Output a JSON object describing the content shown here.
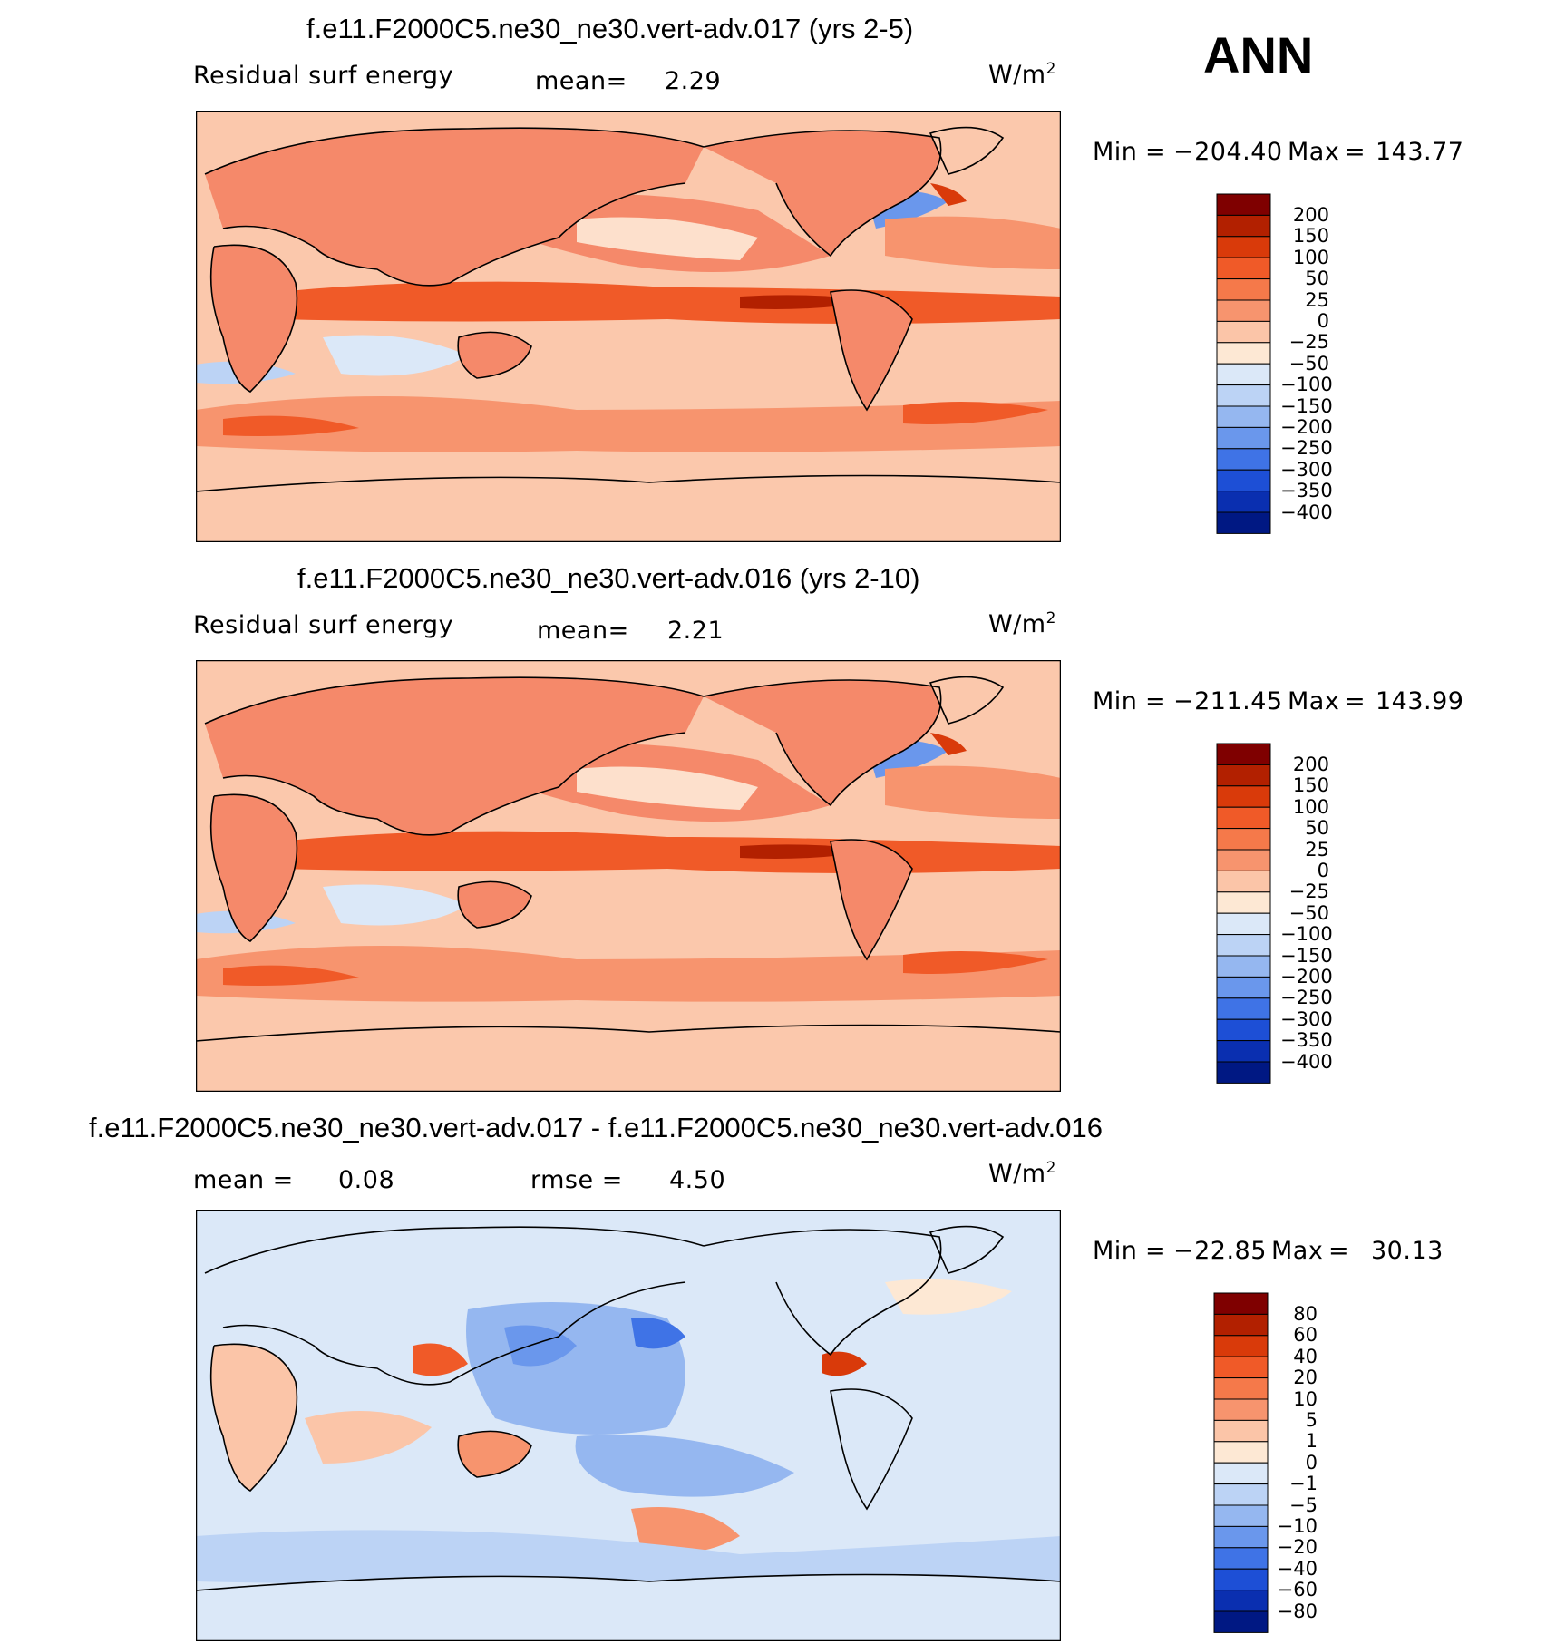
{
  "season": "ANN",
  "units_base": "W/m",
  "units_exp": "2",
  "panels": [
    {
      "title": "f.e11.F2000C5.ne30_ne30.vert-adv.017 (yrs 2-5)",
      "left_label": "Residual surf energy",
      "stat1_label": "mean=",
      "stat1_value": "2.29",
      "min_label": "Min",
      "min_value": "−204.40",
      "max_label": "Max",
      "max_value": "143.77",
      "levels": [
        "200",
        "150",
        "100",
        "50",
        "25",
        "0",
        "−25",
        "−50",
        "−100",
        "−150",
        "−200",
        "−250",
        "−300",
        "−350",
        "−400"
      ]
    },
    {
      "title": "f.e11.F2000C5.ne30_ne30.vert-adv.016 (yrs 2-10)",
      "left_label": "Residual surf energy",
      "stat1_label": "mean=",
      "stat1_value": "2.21",
      "min_label": "Min",
      "min_value": "−211.45",
      "max_label": "Max",
      "max_value": "143.99",
      "levels": [
        "200",
        "150",
        "100",
        "50",
        "25",
        "0",
        "−25",
        "−50",
        "−100",
        "−150",
        "−200",
        "−250",
        "−300",
        "−350",
        "−400"
      ]
    },
    {
      "title": "f.e11.F2000C5.ne30_ne30.vert-adv.017 - f.e11.F2000C5.ne30_ne30.vert-adv.016",
      "stat1_label": "mean =",
      "stat1_value": "0.08",
      "stat2_label": "rmse =",
      "stat2_value": "4.50",
      "min_label": "Min",
      "min_value": "−22.85",
      "max_label": "Max",
      "max_value": "30.13",
      "levels": [
        "80",
        "60",
        "40",
        "20",
        "10",
        "5",
        "1",
        "0",
        "−1",
        "−5",
        "−10",
        "−20",
        "−40",
        "−60",
        "−80"
      ]
    }
  ],
  "colorbar": [
    "#7f0000",
    "#b22000",
    "#d93a0a",
    "#f05a28",
    "#f5794a",
    "#f7946e",
    "#fbc5a8",
    "#fde8d4",
    "#dbe8f8",
    "#bcd3f5",
    "#95b7f0",
    "#6a97ec",
    "#3f73e6",
    "#1d4fd6",
    "#0a2fb0",
    "#001883"
  ],
  "diff_colorbar": [
    "#7f0000",
    "#b22000",
    "#d93a0a",
    "#f05a28",
    "#f5794a",
    "#f7946e",
    "#fbc5a8",
    "#fde8d4",
    "#dbe8f8",
    "#bcd3f5",
    "#95b7f0",
    "#6a97ec",
    "#3f73e6",
    "#1d4fd6",
    "#0a2fb0",
    "#001883"
  ]
}
